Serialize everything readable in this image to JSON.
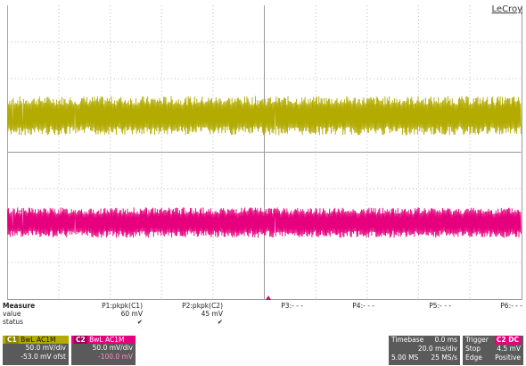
{
  "brand": "LeCroy",
  "channels": {
    "c1": {
      "marker": "C1",
      "color": "#b3ab00"
    },
    "c2": {
      "marker": "C2",
      "color": "#e6007e"
    }
  },
  "measure": {
    "row_labels": [
      "Measure",
      "value",
      "status"
    ],
    "columns": [
      {
        "name": "P1:pkpk(C1)",
        "value": "60 mV",
        "status": "✔"
      },
      {
        "name": "P2:pkpk(C2)",
        "value": "45 mV",
        "status": "✔"
      },
      {
        "name": "P3:- - -",
        "value": "",
        "status": ""
      },
      {
        "name": "P4:- - -",
        "value": "",
        "status": ""
      },
      {
        "name": "P5:- - -",
        "value": "",
        "status": ""
      },
      {
        "name": "P6:- - -",
        "value": "",
        "status": ""
      }
    ]
  },
  "ch1_box": {
    "tag": "C1",
    "header": "BwL AC1M",
    "scale": "50.0 mV/div",
    "offset": "-53.0 mV ofst"
  },
  "ch2_box": {
    "tag": "C2",
    "header": "BwL AC1M",
    "scale": "50.0 mV/div",
    "offset": "-100.0 mV"
  },
  "timebase": {
    "label": "Timebase",
    "delay": "0.0 ms",
    "div": "20.0 ms/div",
    "samples": "5.00 MS",
    "rate": "25 MS/s"
  },
  "trigger": {
    "label": "Trigger",
    "tag": "C2 DC",
    "mode": "Stop",
    "level": "4.5 mV",
    "type": "Edge",
    "slope": "Positive"
  }
}
